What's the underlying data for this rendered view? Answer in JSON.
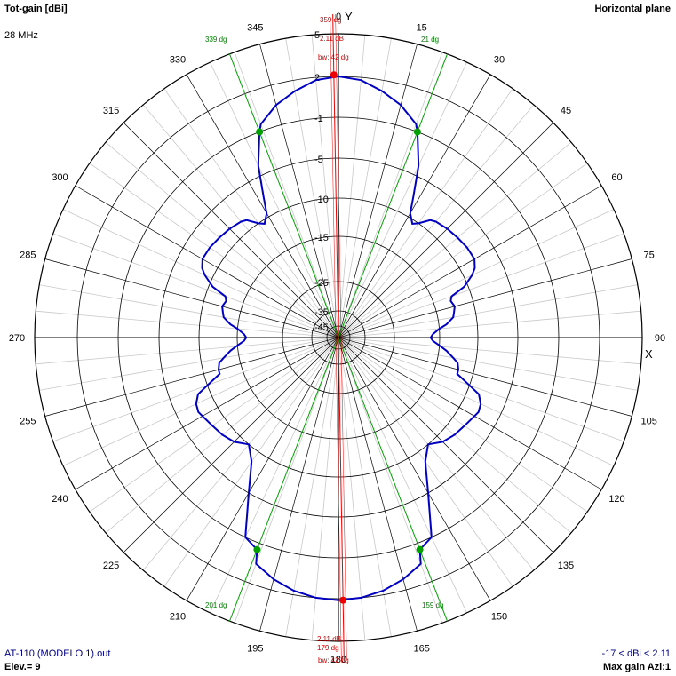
{
  "header": {
    "title": "Tot-gain [dBi]",
    "plane": "Horizontal plane",
    "frequency": "28 MHz"
  },
  "footer": {
    "file": "AT-110 (MODELO 1).out",
    "elevation": "Elev.= 9",
    "range": "-17 < dBi < 2.11",
    "max_gain": "Max gain Azi:1"
  },
  "axes": {
    "y_letter": "Y",
    "x_letter": "X"
  },
  "markers": {
    "top_az": "359 dg",
    "top_gain": "2.11 dB",
    "top_bw": "bw: 42 dg",
    "bottom_az": "179 dg",
    "bottom_gain": "2.11 dB",
    "bottom_bw": "bw: 42 dg",
    "left_top": "339 dg",
    "right_top": "21 dg",
    "left_bottom": "201 dg",
    "right_bottom": "159 dg"
  },
  "chart_data": {
    "type": "polar",
    "title": "Tot-gain [dBi]",
    "angle_unit": "deg",
    "angle_labels": [
      "0",
      "15",
      "30",
      "45",
      "60",
      "75",
      "90",
      "105",
      "120",
      "135",
      "150",
      "165",
      "180",
      "195",
      "210",
      "225",
      "240",
      "255",
      "270",
      "285",
      "300",
      "315",
      "330",
      "345"
    ],
    "radial_labels": [
      "5",
      "2",
      "-1",
      "-5",
      "-10",
      "-15",
      "-25",
      "-35",
      "-45"
    ],
    "series": [
      {
        "azimuth": [
          0,
          5,
          10,
          15,
          20,
          21,
          25,
          28,
          30,
          33,
          35,
          38,
          40,
          45,
          50,
          55,
          60,
          63,
          65,
          68,
          70,
          72,
          75,
          78,
          80,
          83,
          85,
          88,
          90,
          92,
          95,
          97,
          100,
          102,
          105,
          107,
          110,
          112,
          115,
          118,
          120,
          125,
          130,
          135,
          140,
          145,
          150,
          155,
          159,
          160,
          165,
          170,
          175,
          180
        ],
        "gain_dbi": [
          2.0,
          1.8,
          1.2,
          0.5,
          -0.5,
          -1.0,
          -4.0,
          -7.5,
          -9.5,
          -10.5,
          -10.0,
          -8.8,
          -8.5,
          -8.2,
          -8.0,
          -7.8,
          -7.8,
          -8.3,
          -9.0,
          -10.5,
          -12.5,
          -12.8,
          -12.5,
          -12.8,
          -13.0,
          -14.0,
          -15.0,
          -16.5,
          -17.0,
          -16.5,
          -14.8,
          -14.0,
          -13.0,
          -12.3,
          -12.0,
          -12.0,
          -10.0,
          -8.5,
          -7.8,
          -7.6,
          -7.8,
          -8.2,
          -8.5,
          -9.0,
          -10.0,
          -8.5,
          -5.0,
          -1.0,
          -0.5,
          0.5,
          1.2,
          1.7,
          2.0,
          2.11
        ]
      }
    ],
    "symmetry": "mirrored about the 0-180 axis",
    "max_gain_dbi": 2.11,
    "max_gain_azimuth": [
      359,
      179
    ],
    "beamwidth_deg": 42,
    "beamwidth_edges": [
      339,
      21,
      201,
      159
    ],
    "colors": {
      "pattern": "#0000c0",
      "max": "#ee0000",
      "beamwidth": "#00a000",
      "grid": "#000000"
    }
  }
}
